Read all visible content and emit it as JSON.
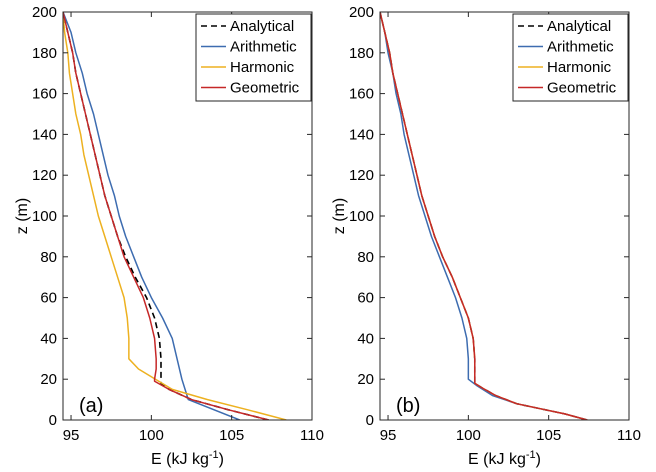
{
  "chart_data": [
    {
      "type": "line",
      "panel_label": "(a)",
      "xlabel_main": "E (kJ kg",
      "xlabel_sup": "-1",
      "xlabel_close": ")",
      "ylabel": "z (m)",
      "xlim": [
        94.5,
        110
      ],
      "ylim": [
        0,
        200
      ],
      "xticks": [
        95,
        100,
        105,
        110
      ],
      "yticks": [
        0,
        20,
        40,
        60,
        80,
        100,
        120,
        140,
        160,
        180,
        200
      ],
      "grid": false,
      "legend_position": "top-right",
      "series": [
        {
          "name": "Analytical",
          "color": "#000000",
          "dash": true,
          "points": [
            [
              107.3,
              0
            ],
            [
              104.8,
              5
            ],
            [
              102.5,
              10
            ],
            [
              101.1,
              15
            ],
            [
              100.6,
              18
            ],
            [
              100.6,
              20
            ],
            [
              100.6,
              25
            ],
            [
              100.6,
              30
            ],
            [
              100.5,
              40
            ],
            [
              100.2,
              50
            ],
            [
              99.7,
              60
            ],
            [
              99.0,
              70
            ],
            [
              98.4,
              80
            ],
            [
              97.9,
              90
            ],
            [
              97.5,
              100
            ],
            [
              97.1,
              110
            ],
            [
              96.8,
              120
            ],
            [
              96.5,
              130
            ],
            [
              96.2,
              140
            ],
            [
              95.9,
              150
            ],
            [
              95.6,
              160
            ],
            [
              95.3,
              170
            ],
            [
              95.1,
              180
            ],
            [
              94.8,
              190
            ],
            [
              94.5,
              200
            ]
          ]
        },
        {
          "name": "Arithmetic",
          "color": "#3d6cb0",
          "dash": false,
          "points": [
            [
              105.5,
              0
            ],
            [
              102.3,
              10
            ],
            [
              101.9,
              20
            ],
            [
              101.6,
              30
            ],
            [
              101.3,
              40
            ],
            [
              100.7,
              50
            ],
            [
              100.0,
              60
            ],
            [
              99.4,
              70
            ],
            [
              98.9,
              80
            ],
            [
              98.4,
              90
            ],
            [
              98.0,
              100
            ],
            [
              97.7,
              110
            ],
            [
              97.3,
              120
            ],
            [
              97.0,
              130
            ],
            [
              96.7,
              140
            ],
            [
              96.4,
              150
            ],
            [
              96.0,
              160
            ],
            [
              95.7,
              170
            ],
            [
              95.3,
              180
            ],
            [
              95.0,
              190
            ],
            [
              94.5,
              200
            ]
          ]
        },
        {
          "name": "Harmonic",
          "color": "#edb120",
          "dash": false,
          "points": [
            [
              108.4,
              0
            ],
            [
              106.0,
              5
            ],
            [
              103.5,
              10
            ],
            [
              101.3,
              15
            ],
            [
              99.2,
              25
            ],
            [
              98.6,
              30
            ],
            [
              98.6,
              40
            ],
            [
              98.5,
              50
            ],
            [
              98.3,
              60
            ],
            [
              97.9,
              70
            ],
            [
              97.5,
              80
            ],
            [
              97.1,
              90
            ],
            [
              96.7,
              100
            ],
            [
              96.4,
              110
            ],
            [
              96.1,
              120
            ],
            [
              95.8,
              130
            ],
            [
              95.6,
              140
            ],
            [
              95.3,
              150
            ],
            [
              95.1,
              160
            ],
            [
              94.9,
              170
            ],
            [
              94.8,
              180
            ],
            [
              94.6,
              190
            ],
            [
              94.5,
              200
            ]
          ]
        },
        {
          "name": "Geometric",
          "color": "#c62828",
          "dash": false,
          "points": [
            [
              107.3,
              0
            ],
            [
              104.8,
              5
            ],
            [
              102.5,
              10
            ],
            [
              101.1,
              15
            ],
            [
              100.2,
              19
            ],
            [
              100.2,
              20
            ],
            [
              100.3,
              25
            ],
            [
              100.3,
              30
            ],
            [
              100.2,
              40
            ],
            [
              99.9,
              50
            ],
            [
              99.5,
              60
            ],
            [
              98.9,
              70
            ],
            [
              98.3,
              80
            ],
            [
              97.9,
              90
            ],
            [
              97.5,
              100
            ],
            [
              97.1,
              110
            ],
            [
              96.8,
              120
            ],
            [
              96.5,
              130
            ],
            [
              96.2,
              140
            ],
            [
              95.9,
              150
            ],
            [
              95.6,
              160
            ],
            [
              95.3,
              170
            ],
            [
              95.1,
              180
            ],
            [
              94.8,
              190
            ],
            [
              94.5,
              200
            ]
          ]
        }
      ]
    },
    {
      "type": "line",
      "panel_label": "(b)",
      "xlabel_main": "E (kJ kg",
      "xlabel_sup": "-1",
      "xlabel_close": ")",
      "ylabel": "z (m)",
      "xlim": [
        94.5,
        110
      ],
      "ylim": [
        0,
        200
      ],
      "xticks": [
        95,
        100,
        105,
        110
      ],
      "yticks": [
        0,
        20,
        40,
        60,
        80,
        100,
        120,
        140,
        160,
        180,
        200
      ],
      "grid": false,
      "legend_position": "top-right",
      "series": [
        {
          "name": "Analytical",
          "color": "#000000",
          "dash": true,
          "points": [
            [
              107.4,
              0
            ],
            [
              106.0,
              3
            ],
            [
              104.8,
              5
            ],
            [
              103.0,
              8
            ],
            [
              101.7,
              12
            ],
            [
              100.8,
              16
            ],
            [
              100.4,
              18
            ],
            [
              100.4,
              20
            ],
            [
              100.4,
              30
            ],
            [
              100.3,
              40
            ],
            [
              100.0,
              50
            ],
            [
              99.5,
              60
            ],
            [
              99.0,
              70
            ],
            [
              98.4,
              80
            ],
            [
              97.9,
              90
            ],
            [
              97.5,
              100
            ],
            [
              97.1,
              110
            ],
            [
              96.8,
              120
            ],
            [
              96.5,
              130
            ],
            [
              96.2,
              140
            ],
            [
              95.9,
              150
            ],
            [
              95.6,
              160
            ],
            [
              95.3,
              170
            ],
            [
              95.1,
              180
            ],
            [
              94.8,
              190
            ],
            [
              94.5,
              200
            ]
          ]
        },
        {
          "name": "Arithmetic",
          "color": "#3d6cb0",
          "dash": false,
          "points": [
            [
              107.4,
              0
            ],
            [
              106.0,
              3
            ],
            [
              104.8,
              5
            ],
            [
              103.0,
              8
            ],
            [
              101.5,
              12
            ],
            [
              100.5,
              17
            ],
            [
              100.0,
              20
            ],
            [
              100.0,
              30
            ],
            [
              99.9,
              40
            ],
            [
              99.6,
              50
            ],
            [
              99.2,
              60
            ],
            [
              98.7,
              70
            ],
            [
              98.2,
              80
            ],
            [
              97.7,
              90
            ],
            [
              97.3,
              100
            ],
            [
              96.9,
              110
            ],
            [
              96.6,
              120
            ],
            [
              96.3,
              130
            ],
            [
              96.0,
              140
            ],
            [
              95.8,
              150
            ],
            [
              95.5,
              160
            ],
            [
              95.3,
              170
            ],
            [
              95.0,
              180
            ],
            [
              94.8,
              190
            ],
            [
              94.5,
              200
            ]
          ]
        },
        {
          "name": "Harmonic",
          "color": "#edb120",
          "dash": false,
          "points": [
            [
              107.4,
              0
            ],
            [
              106.0,
              3
            ],
            [
              104.8,
              5
            ],
            [
              103.0,
              8
            ],
            [
              101.7,
              12
            ],
            [
              100.8,
              16
            ],
            [
              100.4,
              18
            ],
            [
              100.4,
              20
            ],
            [
              100.4,
              30
            ],
            [
              100.3,
              40
            ],
            [
              100.0,
              50
            ],
            [
              99.5,
              60
            ],
            [
              99.0,
              70
            ],
            [
              98.4,
              80
            ],
            [
              97.9,
              90
            ],
            [
              97.5,
              100
            ],
            [
              97.1,
              110
            ],
            [
              96.8,
              120
            ],
            [
              96.5,
              130
            ],
            [
              96.2,
              140
            ],
            [
              95.9,
              150
            ],
            [
              95.6,
              160
            ],
            [
              95.3,
              170
            ],
            [
              95.1,
              180
            ],
            [
              94.8,
              190
            ],
            [
              94.5,
              200
            ]
          ]
        },
        {
          "name": "Geometric",
          "color": "#c62828",
          "dash": false,
          "points": [
            [
              107.4,
              0
            ],
            [
              106.0,
              3
            ],
            [
              104.8,
              5
            ],
            [
              103.0,
              8
            ],
            [
              101.7,
              12
            ],
            [
              100.8,
              16
            ],
            [
              100.4,
              18
            ],
            [
              100.4,
              20
            ],
            [
              100.4,
              30
            ],
            [
              100.3,
              40
            ],
            [
              100.0,
              50
            ],
            [
              99.5,
              60
            ],
            [
              99.0,
              70
            ],
            [
              98.4,
              80
            ],
            [
              97.9,
              90
            ],
            [
              97.5,
              100
            ],
            [
              97.1,
              110
            ],
            [
              96.8,
              120
            ],
            [
              96.5,
              130
            ],
            [
              96.2,
              140
            ],
            [
              95.9,
              150
            ],
            [
              95.6,
              160
            ],
            [
              95.3,
              170
            ],
            [
              95.1,
              180
            ],
            [
              94.8,
              190
            ],
            [
              94.5,
              200
            ]
          ]
        }
      ]
    }
  ]
}
